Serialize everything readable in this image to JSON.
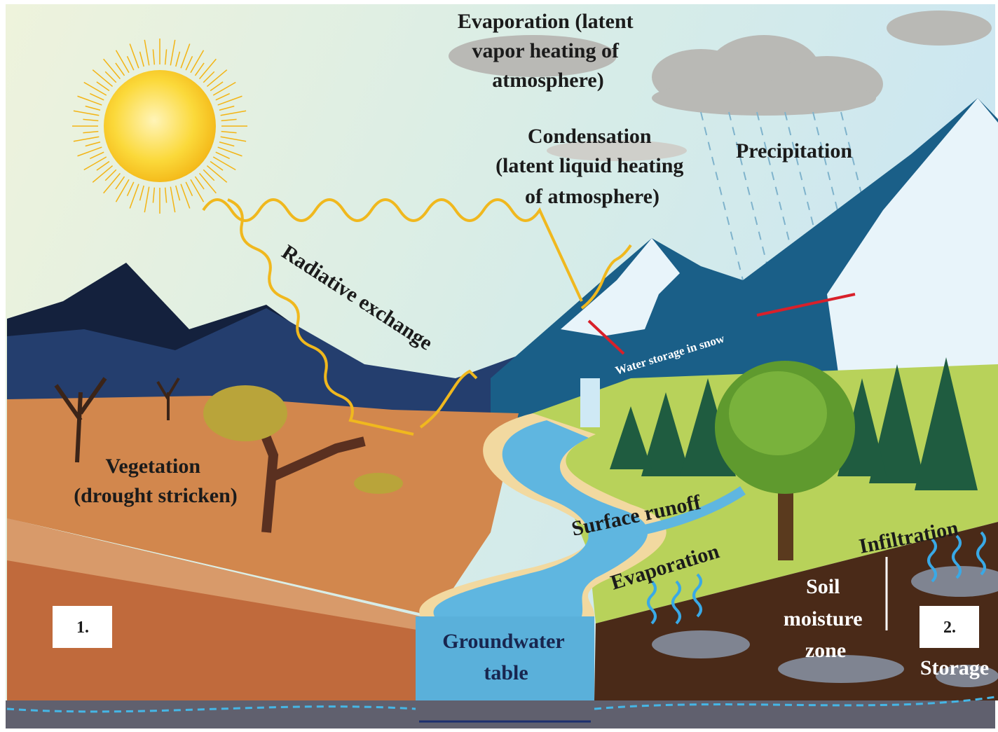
{
  "labels": {
    "evaporation_atmosphere": {
      "lines": [
        "Evaporation (latent",
        "vapor heating of",
        "atmosphere)"
      ]
    },
    "condensation": {
      "lines": [
        "Condensation",
        "(latent liquid heating",
        "of atmosphere)"
      ]
    },
    "precipitation": "Precipitation",
    "radiative_exchange": "Radiative exchange",
    "water_storage_snow": "Water storage in snow",
    "vegetation": {
      "lines": [
        "Vegetation",
        "(drought stricken)"
      ]
    },
    "surface_runoff": "Surface runoff",
    "evaporation_ground": "Evaporation",
    "infiltration": "Infiltration",
    "soil_moisture": {
      "lines": [
        "Soil",
        "moisture",
        "zone"
      ]
    },
    "groundwater": {
      "lines": [
        "Groundwater",
        "table"
      ]
    },
    "panel_1": "1.",
    "panel_2": "2.",
    "storage": "Storage"
  }
}
